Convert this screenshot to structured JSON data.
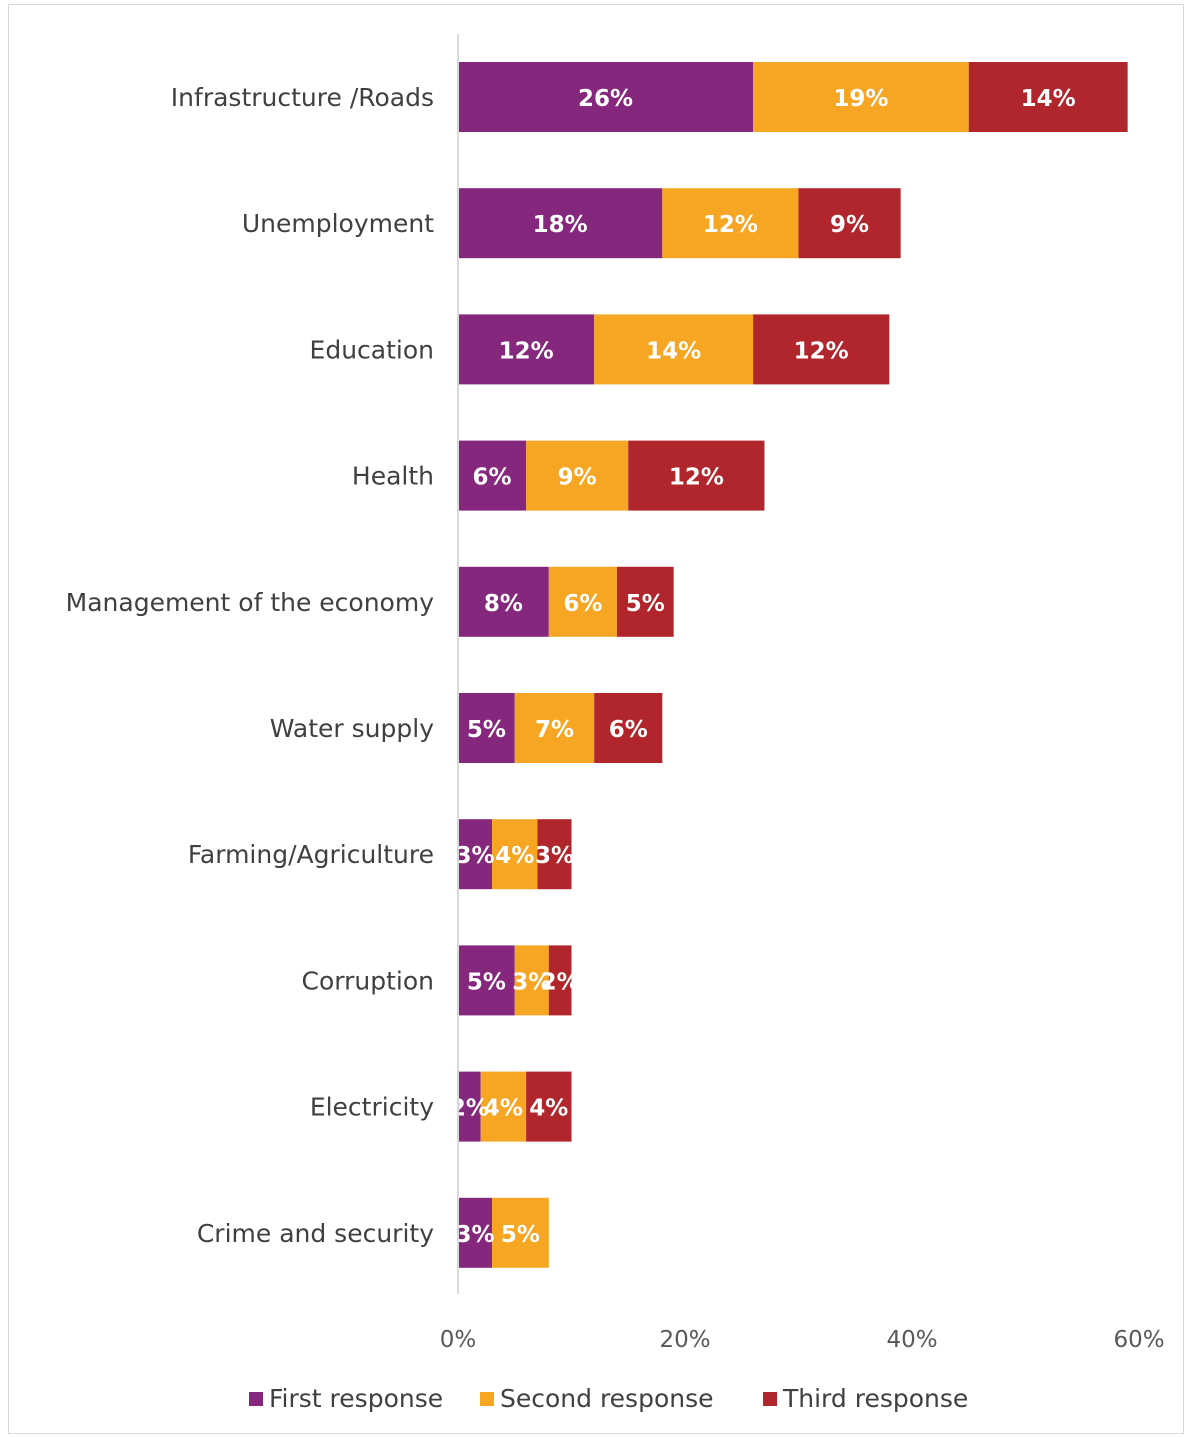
{
  "chart_data": {
    "type": "bar",
    "orientation": "horizontal",
    "stacked": true,
    "categories": [
      "Infrastructure /Roads",
      "Unemployment",
      "Education",
      "Health",
      "Management of the economy",
      "Water supply",
      "Farming/Agriculture",
      "Corruption",
      "Electricity",
      "Crime and security"
    ],
    "series": [
      {
        "name": "First response",
        "color": "#84277d",
        "values": [
          26,
          18,
          12,
          6,
          8,
          5,
          3,
          5,
          2,
          3
        ],
        "labels": [
          "26%",
          "18%",
          "12%",
          "6%",
          "8%",
          "5%",
          "3%",
          "5%",
          "2%",
          "3%"
        ]
      },
      {
        "name": "Second response",
        "color": "#f6a623",
        "values": [
          19,
          12,
          14,
          9,
          6,
          7,
          4,
          3,
          4,
          5
        ],
        "labels": [
          "19%",
          "12%",
          "14%",
          "9%",
          "6%",
          "7%",
          "4%",
          "3%",
          "4%",
          "5%"
        ]
      },
      {
        "name": "Third response",
        "color": "#b0262c",
        "values": [
          14,
          9,
          12,
          12,
          5,
          6,
          3,
          2,
          4,
          null
        ],
        "labels": [
          "14%",
          "9%",
          "12%",
          "12%",
          "5%",
          "6%",
          "3%",
          "2%",
          "4%",
          ""
        ]
      }
    ],
    "xlim": [
      0,
      60
    ],
    "xticks": [
      0,
      20,
      40,
      60
    ],
    "xtick_labels": [
      "0%",
      "20%",
      "40%",
      "60%"
    ],
    "title": "",
    "xlabel": "",
    "ylabel": "",
    "grid": false,
    "legend_position": "bottom"
  }
}
